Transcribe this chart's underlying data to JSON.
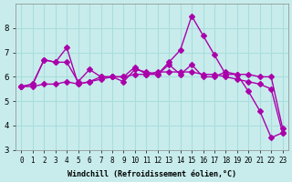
{
  "title": "",
  "xlabel": "Windchill (Refroidissement éolien,°C)",
  "ylabel": "",
  "bg_color": "#c8ecec",
  "line_color": "#aa00aa",
  "marker": "D",
  "marker_size": 3,
  "linewidth": 1.0,
  "xlim": [
    -0.5,
    23.5
  ],
  "ylim": [
    3.0,
    9.0
  ],
  "yticks": [
    3,
    4,
    5,
    6,
    7,
    8
  ],
  "xticks": [
    0,
    1,
    2,
    3,
    4,
    5,
    6,
    7,
    8,
    9,
    10,
    11,
    12,
    13,
    14,
    15,
    16,
    17,
    18,
    19,
    20,
    21,
    22,
    23
  ],
  "grid_color": "#aadddd",
  "series": [
    [
      5.6,
      5.7,
      6.7,
      6.6,
      7.2,
      5.7,
      5.8,
      6.0,
      6.0,
      6.0,
      6.4,
      6.1,
      6.1,
      6.6,
      7.1,
      8.5,
      7.7,
      6.9,
      6.1,
      6.1,
      5.4,
      4.6,
      3.5,
      3.7
    ],
    [
      5.6,
      5.7,
      6.7,
      6.6,
      6.6,
      5.8,
      6.3,
      6.0,
      6.0,
      5.8,
      6.3,
      6.2,
      6.1,
      6.5,
      6.1,
      6.5,
      6.0,
      6.0,
      6.2,
      6.1,
      6.1,
      6.0,
      6.0,
      3.9
    ],
    [
      5.6,
      5.6,
      5.7,
      5.7,
      5.8,
      5.7,
      5.8,
      5.9,
      6.0,
      6.0,
      6.1,
      6.1,
      6.2,
      6.2,
      6.2,
      6.2,
      6.1,
      6.1,
      6.0,
      5.9,
      5.8,
      5.7,
      5.5,
      3.7
    ]
  ]
}
